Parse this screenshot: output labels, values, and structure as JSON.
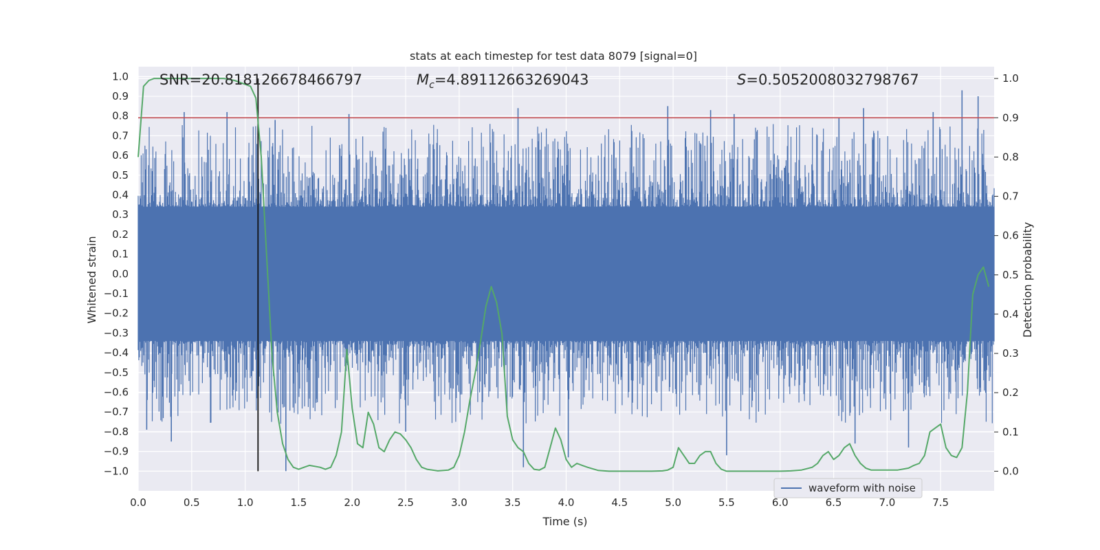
{
  "chart_data": {
    "type": "line",
    "title": "stats at each timestep for test data 8079 [signal=0]",
    "xlabel": "Time (s)",
    "ylabel_left": "Whitened strain",
    "ylabel_right": "Detection probability",
    "xlim": [
      0.0,
      8.0
    ],
    "ylim_left": [
      -1.1,
      1.05
    ],
    "ylim_right": [
      -0.05,
      1.03
    ],
    "xticks": [
      "0.0",
      "0.5",
      "1.0",
      "1.5",
      "2.0",
      "2.5",
      "3.0",
      "3.5",
      "4.0",
      "4.5",
      "5.0",
      "5.5",
      "6.0",
      "6.5",
      "7.0",
      "7.5"
    ],
    "yticks_left": [
      "1.0",
      "0.9",
      "0.8",
      "0.7",
      "0.6",
      "0.5",
      "0.4",
      "0.3",
      "0.2",
      "0.1",
      "0.0",
      "−0.1",
      "−0.2",
      "−0.3",
      "−0.4",
      "−0.5",
      "−0.6",
      "−0.7",
      "−0.8",
      "−0.9",
      "−1.0"
    ],
    "yticks_right": [
      "1.0",
      "0.9",
      "0.8",
      "0.7",
      "0.6",
      "0.5",
      "0.4",
      "0.3",
      "0.2",
      "0.1",
      "0.0"
    ],
    "grid": true,
    "legend": {
      "position": "lower-right",
      "entries": [
        "waveform with noise"
      ]
    },
    "annotations": {
      "snr": "SNR=20.818126678466797",
      "mc_sym": "M",
      "mc_sub": "c",
      "mc_val": "=4.89112663269043",
      "s_sym": "S",
      "s_val": "=0.5052008032798767"
    },
    "threshold": {
      "value": 0.9,
      "axis": "right",
      "color": "#c44e52"
    },
    "marker_time": 1.12,
    "series": [
      {
        "name": "waveform with noise",
        "axis": "left",
        "color": "#4c72b0",
        "description": "dense whitened strain noise, roughly -0.4 to 0.4 with spikes up to 0.93 and down to -1.0",
        "spikes": [
          [
            0.43,
            0.82
          ],
          [
            0.83,
            0.82
          ],
          [
            1.28,
            0.78
          ],
          [
            1.97,
            0.81
          ],
          [
            3.55,
            0.84
          ],
          [
            4.95,
            0.85
          ],
          [
            5.35,
            0.83
          ],
          [
            5.57,
            0.81
          ],
          [
            6.55,
            0.79
          ],
          [
            6.78,
            0.84
          ],
          [
            7.43,
            0.82
          ],
          [
            7.7,
            0.93
          ],
          [
            7.85,
            0.9
          ],
          [
            0.31,
            -0.85
          ],
          [
            1.38,
            -1.0
          ],
          [
            3.6,
            -0.98
          ],
          [
            4.02,
            -0.93
          ],
          [
            5.5,
            -0.92
          ],
          [
            6.7,
            -0.86
          ],
          [
            7.2,
            -0.88
          ],
          [
            0.08,
            -0.79
          ],
          [
            2.5,
            -0.8
          ]
        ]
      },
      {
        "name": "Detection probability",
        "axis": "right",
        "color": "#55a868",
        "x": [
          0.0,
          0.05,
          0.1,
          0.15,
          0.2,
          0.3,
          0.4,
          0.5,
          0.6,
          0.7,
          0.8,
          0.9,
          1.0,
          1.05,
          1.1,
          1.15,
          1.2,
          1.25,
          1.3,
          1.35,
          1.4,
          1.45,
          1.5,
          1.55,
          1.6,
          1.7,
          1.75,
          1.8,
          1.85,
          1.9,
          1.95,
          2.0,
          2.05,
          2.1,
          2.15,
          2.2,
          2.25,
          2.3,
          2.35,
          2.4,
          2.45,
          2.5,
          2.55,
          2.6,
          2.65,
          2.7,
          2.8,
          2.9,
          2.95,
          3.0,
          3.05,
          3.1,
          3.15,
          3.2,
          3.25,
          3.3,
          3.35,
          3.4,
          3.45,
          3.5,
          3.55,
          3.6,
          3.65,
          3.7,
          3.75,
          3.8,
          3.85,
          3.9,
          3.95,
          4.0,
          4.05,
          4.1,
          4.15,
          4.2,
          4.3,
          4.4,
          4.5,
          4.6,
          4.7,
          4.8,
          4.9,
          4.95,
          5.0,
          5.05,
          5.1,
          5.15,
          5.2,
          5.25,
          5.3,
          5.35,
          5.4,
          5.45,
          5.5,
          5.6,
          5.7,
          5.8,
          5.9,
          6.0,
          6.1,
          6.2,
          6.3,
          6.35,
          6.4,
          6.45,
          6.5,
          6.55,
          6.6,
          6.65,
          6.7,
          6.75,
          6.8,
          6.85,
          6.9,
          7.0,
          7.1,
          7.2,
          7.25,
          7.3,
          7.35,
          7.4,
          7.45,
          7.5,
          7.55,
          7.6,
          7.65,
          7.7,
          7.75,
          7.8,
          7.85,
          7.9,
          7.95
        ],
        "y": [
          0.8,
          0.98,
          0.995,
          1.0,
          1.0,
          1.0,
          1.0,
          1.0,
          1.0,
          1.0,
          1.0,
          0.995,
          0.985,
          0.98,
          0.95,
          0.8,
          0.55,
          0.3,
          0.15,
          0.07,
          0.03,
          0.01,
          0.005,
          0.01,
          0.015,
          0.01,
          0.005,
          0.01,
          0.04,
          0.1,
          0.31,
          0.16,
          0.07,
          0.06,
          0.15,
          0.12,
          0.06,
          0.05,
          0.08,
          0.1,
          0.095,
          0.08,
          0.06,
          0.03,
          0.01,
          0.005,
          0.001,
          0.003,
          0.01,
          0.04,
          0.1,
          0.18,
          0.25,
          0.33,
          0.42,
          0.47,
          0.43,
          0.35,
          0.14,
          0.08,
          0.06,
          0.05,
          0.02,
          0.005,
          0.003,
          0.01,
          0.06,
          0.11,
          0.08,
          0.03,
          0.01,
          0.02,
          0.015,
          0.01,
          0.002,
          0.0,
          0.0,
          0.0,
          0.0,
          0.0,
          0.001,
          0.003,
          0.01,
          0.06,
          0.04,
          0.02,
          0.02,
          0.04,
          0.05,
          0.05,
          0.02,
          0.005,
          0.0,
          0.0,
          0.0,
          0.0,
          0.0,
          0.0,
          0.001,
          0.003,
          0.01,
          0.02,
          0.04,
          0.05,
          0.03,
          0.04,
          0.06,
          0.07,
          0.04,
          0.02,
          0.008,
          0.003,
          0.003,
          0.003,
          0.003,
          0.008,
          0.015,
          0.02,
          0.04,
          0.1,
          0.11,
          0.12,
          0.06,
          0.04,
          0.035,
          0.06,
          0.2,
          0.45,
          0.5,
          0.52,
          0.47
        ]
      }
    ]
  }
}
